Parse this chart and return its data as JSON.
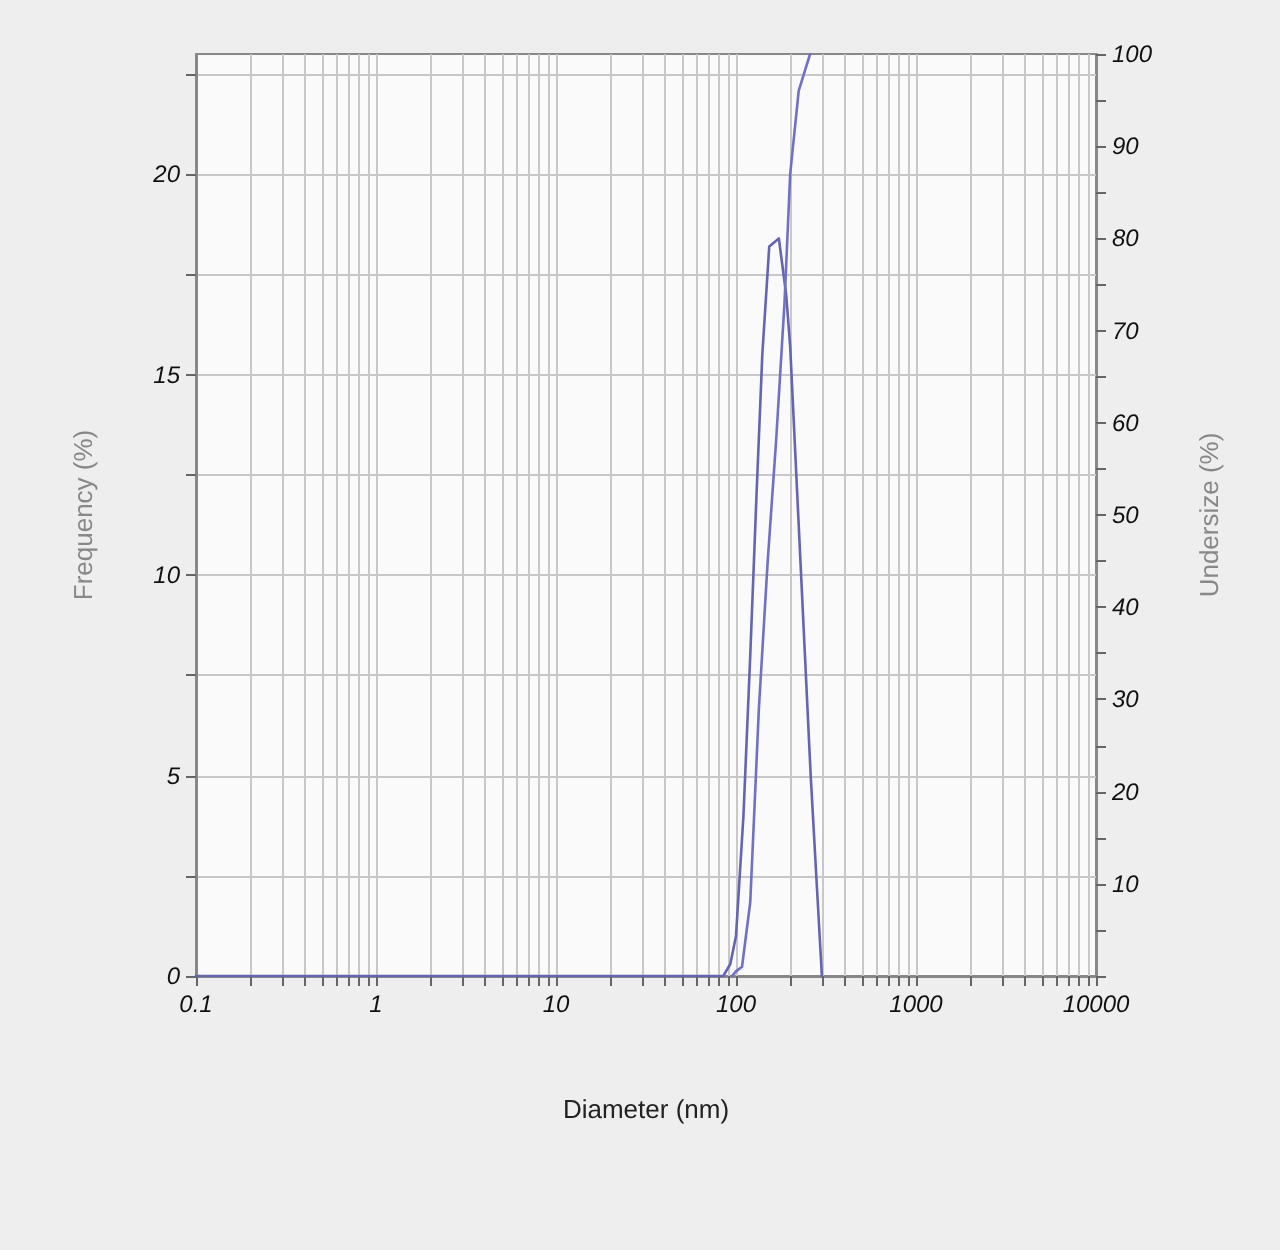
{
  "chart_data": {
    "type": "line",
    "xlabel": "Diameter (nm)",
    "ylabel": "Frequency (%)",
    "y2label": "Undersize (%)",
    "log": "x",
    "grid": true,
    "marker": "none",
    "line_style": "solid",
    "xlim": [
      0.1,
      10000
    ],
    "xticks": [
      0.1,
      {
        "value": 0.2,
        "label": null
      },
      {
        "value": 0.3,
        "label": null
      },
      {
        "value": 0.4,
        "label": null
      },
      {
        "value": 0.5,
        "label": null
      },
      {
        "value": 0.6,
        "label": null
      },
      {
        "value": 0.7,
        "label": null
      },
      {
        "value": 0.8,
        "label": null
      },
      {
        "value": 0.9,
        "label": null
      },
      1,
      {
        "value": 2,
        "label": null
      },
      {
        "value": 3,
        "label": null
      },
      {
        "value": 4,
        "label": null
      },
      {
        "value": 5,
        "label": null
      },
      {
        "value": 6,
        "label": null
      },
      {
        "value": 7,
        "label": null
      },
      {
        "value": 8,
        "label": null
      },
      {
        "value": 9,
        "label": null
      },
      10,
      {
        "value": 20,
        "label": null
      },
      {
        "value": 30,
        "label": null
      },
      {
        "value": 40,
        "label": null
      },
      {
        "value": 50,
        "label": null
      },
      {
        "value": 60,
        "label": null
      },
      {
        "value": 70,
        "label": null
      },
      {
        "value": 80,
        "label": null
      },
      {
        "value": 90,
        "label": null
      },
      100,
      {
        "value": 200,
        "label": null
      },
      {
        "value": 300,
        "label": null
      },
      {
        "value": 400,
        "label": null
      },
      {
        "value": 500,
        "label": null
      },
      {
        "value": 600,
        "label": null
      },
      {
        "value": 700,
        "label": null
      },
      {
        "value": 800,
        "label": null
      },
      {
        "value": 900,
        "label": null
      },
      1000,
      {
        "value": 2000,
        "label": null
      },
      {
        "value": 3000,
        "label": null
      },
      {
        "value": 4000,
        "label": null
      },
      {
        "value": 5000,
        "label": null
      },
      {
        "value": 6000,
        "label": null
      },
      {
        "value": 7000,
        "label": null
      },
      {
        "value": 8000,
        "label": null
      },
      {
        "value": 9000,
        "label": null
      },
      10000
    ],
    "ylim": [
      0,
      23
    ],
    "yticks": [
      0,
      {
        "value": 2.5,
        "label": null
      },
      5,
      {
        "value": 7.5,
        "label": null
      },
      10,
      {
        "value": 12.5,
        "label": null
      },
      15,
      {
        "value": 17.5,
        "label": null
      },
      20,
      {
        "value": 22.5,
        "label": null
      }
    ],
    "y2lim": [
      0,
      100
    ],
    "y2ticks": [
      {
        "value": 0,
        "label": null
      },
      {
        "value": 5,
        "label": null
      },
      10,
      {
        "value": 15,
        "label": null
      },
      20,
      {
        "value": 25,
        "label": null
      },
      30,
      {
        "value": 35,
        "label": null
      },
      40,
      {
        "value": 45,
        "label": null
      },
      50,
      {
        "value": 55,
        "label": null
      },
      60,
      {
        "value": 65,
        "label": null
      },
      70,
      {
        "value": 75,
        "label": null
      },
      80,
      {
        "value": 85,
        "label": null
      },
      90,
      {
        "value": 95,
        "label": null
      },
      100
    ],
    "series": [
      {
        "color": "#6464b0",
        "x": [
          0.1,
          0.3,
          85,
          93,
          100,
          110,
          120,
          130,
          140,
          153,
          173,
          190,
          200,
          230,
          260,
          300
        ],
        "values": [
          0,
          0,
          0,
          0.3,
          1,
          4,
          8,
          12,
          15.5,
          18.2,
          18.4,
          17,
          15.7,
          10,
          5,
          0
        ]
      },
      {
        "color": "#7070c4",
        "axis": "y2",
        "x": [
          95,
          100,
          108,
          120,
          134,
          150,
          167,
          186,
          200,
          223,
          258
        ],
        "values": [
          0,
          0.5,
          1,
          8,
          29,
          45,
          58,
          73,
          87,
          96,
          100
        ]
      }
    ]
  }
}
